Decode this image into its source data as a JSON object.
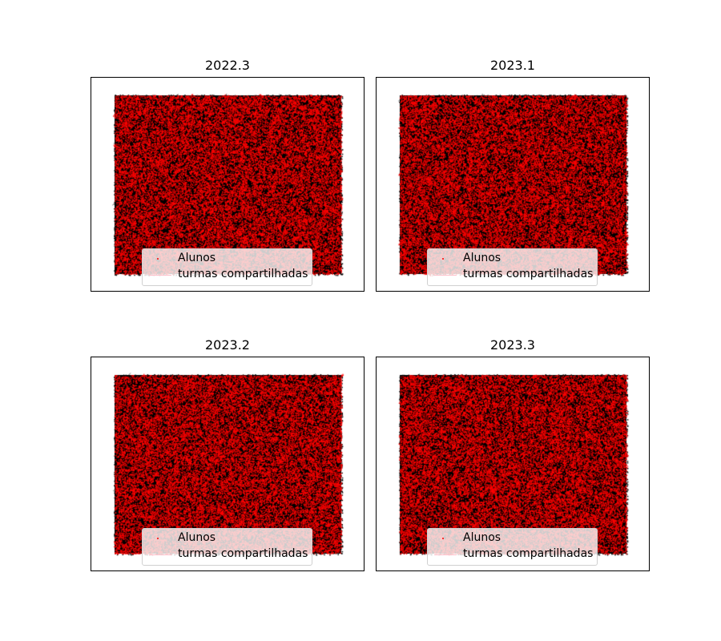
{
  "chart_data": [
    {
      "type": "scatter",
      "title": "2022.3",
      "series": [
        {
          "name": "Alunos",
          "marker_color": "#ff0000"
        },
        {
          "name": "turmas compartilhadas",
          "line_color": "#ffc0cb"
        }
      ],
      "grid": false,
      "axes_visible": false,
      "legend_placement": "lower-center"
    },
    {
      "type": "scatter",
      "title": "2023.1",
      "series": [
        {
          "name": "Alunos",
          "marker_color": "#ff0000"
        },
        {
          "name": "turmas compartilhadas",
          "line_color": "#ffc0cb"
        }
      ],
      "grid": false,
      "axes_visible": false,
      "legend_placement": "lower-center"
    },
    {
      "type": "scatter",
      "title": "2023.2",
      "series": [
        {
          "name": "Alunos",
          "marker_color": "#ff0000"
        },
        {
          "name": "turmas compartilhadas",
          "line_color": "#ffc0cb"
        }
      ],
      "grid": false,
      "axes_visible": false,
      "legend_placement": "lower-center"
    },
    {
      "type": "scatter",
      "title": "2023.3",
      "series": [
        {
          "name": "Alunos",
          "marker_color": "#ff0000"
        },
        {
          "name": "turmas compartilhadas",
          "line_color": "#ffc0cb"
        }
      ],
      "grid": false,
      "axes_visible": false,
      "legend_placement": "lower-center"
    }
  ]
}
